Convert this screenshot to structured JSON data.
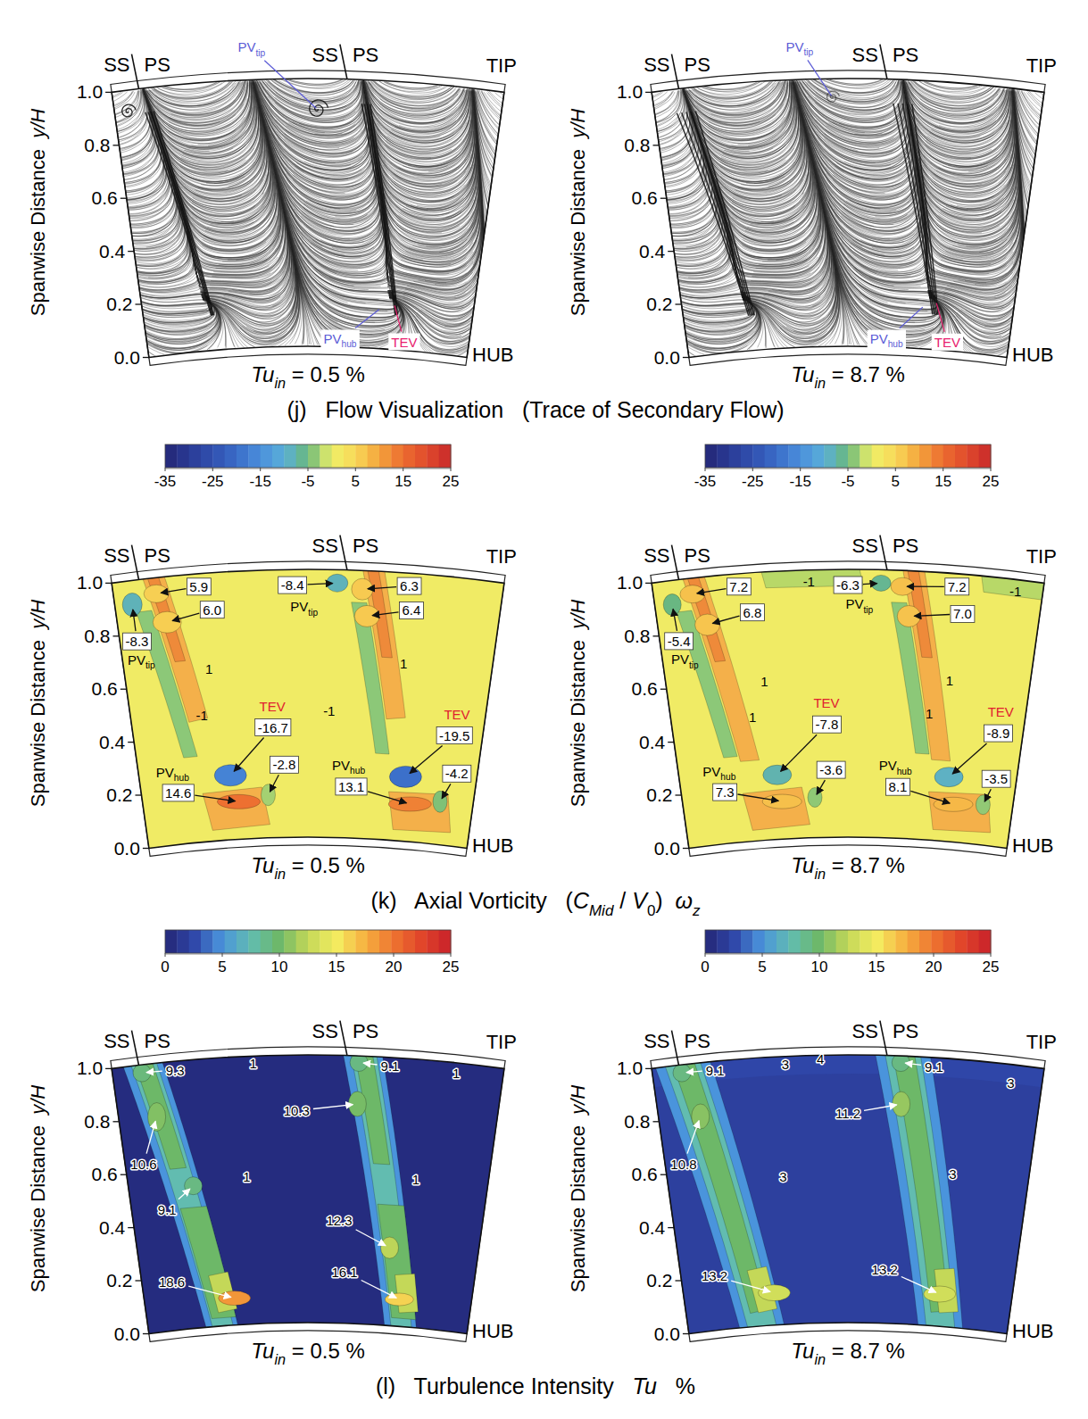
{
  "captions": [
    {
      "parts": [
        {
          "text": "(j)   Flow Visualization   (Trace of Secondary Flow)"
        }
      ]
    },
    {
      "parts": [
        {
          "text": "(k)   Axial Vorticity   ("
        },
        {
          "text": "C",
          "style": "italic"
        },
        {
          "text": "Mid",
          "style": "italic-sub"
        },
        {
          "text": " / "
        },
        {
          "text": "V",
          "style": "italic"
        },
        {
          "text": "0",
          "style": "sub"
        },
        {
          "text": ")  "
        },
        {
          "text": "ω",
          "style": "italic"
        },
        {
          "text": "z",
          "style": "italic-sub"
        }
      ]
    },
    {
      "parts": [
        {
          "text": "(l)   Turbulence Intensity   "
        },
        {
          "text": "Tu",
          "style": "italic"
        },
        {
          "text": "   %"
        }
      ]
    }
  ],
  "chart_data": [
    {
      "type": "streamlines",
      "subtitle": [
        {
          "text": "Tu",
          "style": "italic"
        },
        {
          "text": "in",
          "style": "italic-sub"
        },
        {
          "text": " = 0.5 %"
        }
      ],
      "ylabel": [
        {
          "text": "Spanwise Distance  "
        },
        {
          "text": "y/H",
          "style": "italic"
        }
      ],
      "ylim": [
        0,
        1
      ],
      "yticks": [
        {
          "value": 0,
          "label": "0.0"
        },
        0.2,
        0.4,
        0.6,
        0.8,
        {
          "value": 1,
          "label": "1.0"
        }
      ],
      "tick_labels": "y",
      "blade_labels": [
        {
          "suction": "SS",
          "pressure": "PS"
        },
        {
          "suction": "SS",
          "pressure": "PS"
        }
      ],
      "tip_label": "TIP",
      "hub_label": "HUB",
      "annotations": [
        {
          "parts": [
            {
              "text": "PV"
            },
            {
              "text": "tip",
              "style": "sub"
            }
          ],
          "color": "#5b5bd6"
        },
        {
          "parts": [
            {
              "text": "PV"
            },
            {
              "text": "hub",
              "style": "sub"
            }
          ],
          "color": "#5b5bd6"
        },
        {
          "parts": [
            {
              "text": "TEV"
            }
          ],
          "color": "#e8206e"
        }
      ]
    },
    {
      "type": "streamlines",
      "subtitle": [
        {
          "text": "Tu",
          "style": "italic"
        },
        {
          "text": "in",
          "style": "italic-sub"
        },
        {
          "text": " = 8.7 %"
        }
      ],
      "ylabel": [
        {
          "text": "Spanwise Distance  "
        },
        {
          "text": "y/H",
          "style": "italic"
        }
      ],
      "ylim": [
        0,
        1
      ],
      "yticks": [
        {
          "value": 0,
          "label": "0.0"
        },
        0.2,
        0.4,
        0.6,
        0.8,
        {
          "value": 1,
          "label": "1.0"
        }
      ],
      "tick_labels": "y",
      "blade_labels": [
        {
          "suction": "SS",
          "pressure": "PS"
        },
        {
          "suction": "SS",
          "pressure": "PS"
        }
      ],
      "tip_label": "TIP",
      "hub_label": "HUB",
      "annotations": [
        {
          "parts": [
            {
              "text": "PV"
            },
            {
              "text": "tip",
              "style": "sub"
            }
          ],
          "color": "#5b5bd6"
        },
        {
          "parts": [
            {
              "text": "PV"
            },
            {
              "text": "hub",
              "style": "sub"
            }
          ],
          "color": "#5b5bd6"
        },
        {
          "parts": [
            {
              "text": "TEV"
            }
          ],
          "color": "#e8206e"
        }
      ]
    },
    {
      "type": "contour",
      "subtitle": [
        {
          "text": "Tu",
          "style": "italic"
        },
        {
          "text": "in",
          "style": "italic-sub"
        },
        {
          "text": " = 0.5 %"
        }
      ],
      "ylabel": [
        {
          "text": "Spanwise Distance  "
        },
        {
          "text": "y/H",
          "style": "italic"
        }
      ],
      "ylim": [
        0,
        1
      ],
      "yticks": [
        {
          "value": 0,
          "label": "0.0"
        },
        0.2,
        0.4,
        0.6,
        0.8,
        {
          "value": 1,
          "label": "1.0"
        }
      ],
      "tick_labels": "y",
      "blade_labels": [
        {
          "suction": "SS",
          "pressure": "PS"
        },
        {
          "suction": "SS",
          "pressure": "PS"
        }
      ],
      "tip_label": "TIP",
      "hub_label": "HUB",
      "background_value": 1,
      "colorbar": {
        "range": [
          -35,
          25
        ],
        "ticks": [
          -35,
          -25,
          -15,
          -5,
          5,
          15,
          25
        ],
        "colors": [
          "#232675",
          "#2a3a95",
          "#3050b0",
          "#3a6cc8",
          "#4b8fdc",
          "#5aafd8",
          "#6ab87a",
          "#eef068",
          "#f8d858",
          "#f4a43c",
          "#ec6c30",
          "#e04a2c",
          "#c8282a"
        ]
      },
      "annotations": [
        {
          "text": "5.9",
          "value": 5.9
        },
        {
          "text": "6.0",
          "value": 6
        },
        {
          "text": "-8.3",
          "value": -8.3
        },
        {
          "parts": [
            {
              "text": "PV"
            },
            {
              "text": "tip",
              "style": "sub"
            }
          ]
        },
        {
          "text": "1",
          "value": 1
        },
        {
          "text": "-1",
          "value": -1
        },
        {
          "parts": [
            {
              "text": "TEV"
            }
          ],
          "color": "#e02030"
        },
        {
          "text": "-16.7",
          "value": -16.7
        },
        {
          "parts": [
            {
              "text": "PV"
            },
            {
              "text": "hub",
              "style": "sub"
            }
          ]
        },
        {
          "text": "14.6",
          "value": 14.6
        },
        {
          "text": "-2.8",
          "value": -2.8
        },
        {
          "text": "-8.4",
          "value": -8.4
        },
        {
          "parts": [
            {
              "text": "PV"
            },
            {
              "text": "tip",
              "style": "sub"
            }
          ]
        },
        {
          "text": "6.3",
          "value": 6.3
        },
        {
          "text": "6.4",
          "value": 6.4
        },
        {
          "text": "1",
          "value": 1
        },
        {
          "text": "-1",
          "value": -1
        },
        {
          "parts": [
            {
              "text": "TEV"
            }
          ],
          "color": "#e02030"
        },
        {
          "text": "-19.5",
          "value": -19.5
        },
        {
          "parts": [
            {
              "text": "PV"
            },
            {
              "text": "hub",
              "style": "sub"
            }
          ]
        },
        {
          "text": "13.1",
          "value": 13.1
        },
        {
          "text": "-4.2",
          "value": -4.2
        }
      ]
    },
    {
      "type": "contour",
      "subtitle": [
        {
          "text": "Tu",
          "style": "italic"
        },
        {
          "text": "in",
          "style": "italic-sub"
        },
        {
          "text": " = 8.7 %"
        }
      ],
      "ylabel": [
        {
          "text": "Spanwise Distance  "
        },
        {
          "text": "y/H",
          "style": "italic"
        }
      ],
      "ylim": [
        0,
        1
      ],
      "yticks": [
        {
          "value": 0,
          "label": "0.0"
        },
        0.2,
        0.4,
        0.6,
        0.8,
        {
          "value": 1,
          "label": "1.0"
        }
      ],
      "tick_labels": "y",
      "blade_labels": [
        {
          "suction": "SS",
          "pressure": "PS"
        },
        {
          "suction": "SS",
          "pressure": "PS"
        }
      ],
      "tip_label": "TIP",
      "hub_label": "HUB",
      "background_value": 1,
      "colorbar": {
        "range": [
          -35,
          25
        ],
        "ticks": [
          -35,
          -25,
          -15,
          -5,
          5,
          15,
          25
        ],
        "colors": [
          "#232675",
          "#2a3a95",
          "#3050b0",
          "#3a6cc8",
          "#4b8fdc",
          "#5aafd8",
          "#6ab87a",
          "#eef068",
          "#f8d858",
          "#f4a43c",
          "#ec6c30",
          "#e04a2c",
          "#c8282a"
        ]
      },
      "annotations": [
        {
          "text": "7.2",
          "value": 7.2
        },
        {
          "text": "6.8",
          "value": 6.8
        },
        {
          "text": "-5.4",
          "value": -5.4
        },
        {
          "parts": [
            {
              "text": "PV"
            },
            {
              "text": "tip",
              "style": "sub"
            }
          ]
        },
        {
          "text": "-1",
          "value": -1
        },
        {
          "text": "1",
          "value": 1
        },
        {
          "text": "1",
          "value": 1
        },
        {
          "parts": [
            {
              "text": "TEV"
            }
          ],
          "color": "#e02030"
        },
        {
          "text": "-7.8",
          "value": -7.8
        },
        {
          "parts": [
            {
              "text": "PV"
            },
            {
              "text": "hub",
              "style": "sub"
            }
          ]
        },
        {
          "text": "7.3",
          "value": 7.3
        },
        {
          "text": "-3.6",
          "value": -3.6
        },
        {
          "text": "-6.3",
          "value": -6.3
        },
        {
          "parts": [
            {
              "text": "PV"
            },
            {
              "text": "tip",
              "style": "sub"
            }
          ]
        },
        {
          "text": "7.2",
          "value": 7.2
        },
        {
          "text": "7.0",
          "value": 7
        },
        {
          "text": "-1",
          "value": -1
        },
        {
          "text": "1",
          "value": 1
        },
        {
          "text": "1",
          "value": 1
        },
        {
          "parts": [
            {
              "text": "TEV"
            }
          ],
          "color": "#e02030"
        },
        {
          "text": "-8.9",
          "value": -8.9
        },
        {
          "parts": [
            {
              "text": "PV"
            },
            {
              "text": "hub",
              "style": "sub"
            }
          ]
        },
        {
          "text": "8.1",
          "value": 8.1
        },
        {
          "text": "-3.5",
          "value": -3.5
        }
      ]
    },
    {
      "type": "contour",
      "subtitle": [
        {
          "text": "Tu",
          "style": "italic"
        },
        {
          "text": "in",
          "style": "italic-sub"
        },
        {
          "text": " = 0.5 %"
        }
      ],
      "ylabel": [
        {
          "text": "Spanwise Distance  "
        },
        {
          "text": "y/H",
          "style": "italic"
        }
      ],
      "ylim": [
        0,
        1
      ],
      "yticks": [
        {
          "value": 0,
          "label": "0.0"
        },
        0.2,
        0.4,
        0.6,
        0.8,
        {
          "value": 1,
          "label": "1.0"
        }
      ],
      "tick_labels": "y",
      "blade_labels": [
        {
          "suction": "SS",
          "pressure": "PS"
        },
        {
          "suction": "SS",
          "pressure": "PS"
        }
      ],
      "tip_label": "TIP",
      "hub_label": "HUB",
      "background_value": 0.5,
      "colorbar": {
        "range": [
          0,
          25
        ],
        "ticks": [
          0,
          5,
          10,
          15,
          20,
          25
        ],
        "colors": [
          "#232675",
          "#2f46a8",
          "#4a94dc",
          "#62bcb0",
          "#6db868",
          "#c4d858",
          "#f4ec60",
          "#f6b040",
          "#ee7430",
          "#e0442a",
          "#c8202a"
        ]
      },
      "annotations": [
        {
          "text": "9.3",
          "value": 9.3
        },
        {
          "text": "1",
          "value": 1
        },
        {
          "text": "10.6",
          "value": 10.6
        },
        {
          "text": "9.1",
          "value": 9.1
        },
        {
          "text": "1",
          "value": 1
        },
        {
          "text": "18.6",
          "value": 18.6
        },
        {
          "text": "9.1",
          "value": 9.1
        },
        {
          "text": "1",
          "value": 1
        },
        {
          "text": "10.3",
          "value": 10.3
        },
        {
          "text": "1",
          "value": 1
        },
        {
          "text": "12.3",
          "value": 12.3
        },
        {
          "text": "16.1",
          "value": 16.1
        }
      ]
    },
    {
      "type": "contour",
      "subtitle": [
        {
          "text": "Tu",
          "style": "italic"
        },
        {
          "text": "in",
          "style": "italic-sub"
        },
        {
          "text": " = 8.7 %"
        }
      ],
      "ylabel": [
        {
          "text": "Spanwise Distance  "
        },
        {
          "text": "y/H",
          "style": "italic"
        }
      ],
      "ylim": [
        0,
        1
      ],
      "yticks": [
        {
          "value": 0,
          "label": "0.0"
        },
        0.2,
        0.4,
        0.6,
        0.8,
        {
          "value": 1,
          "label": "1.0"
        }
      ],
      "tick_labels": "y",
      "blade_labels": [
        {
          "suction": "SS",
          "pressure": "PS"
        },
        {
          "suction": "SS",
          "pressure": "PS"
        }
      ],
      "tip_label": "TIP",
      "hub_label": "HUB",
      "background_value": 2,
      "colorbar": {
        "range": [
          0,
          25
        ],
        "ticks": [
          0,
          5,
          10,
          15,
          20,
          25
        ],
        "colors": [
          "#232675",
          "#2f46a8",
          "#4a94dc",
          "#62bcb0",
          "#6db868",
          "#c4d858",
          "#f4ec60",
          "#f6b040",
          "#ee7430",
          "#e0442a",
          "#c8202a"
        ]
      },
      "annotations": [
        {
          "text": "9.1",
          "value": 9.1
        },
        {
          "text": "3",
          "value": 3
        },
        {
          "text": "4",
          "value": 4
        },
        {
          "text": "10.8",
          "value": 10.8
        },
        {
          "text": "3",
          "value": 3
        },
        {
          "text": "13.2",
          "value": 13.2
        },
        {
          "text": "9.1",
          "value": 9.1
        },
        {
          "text": "3",
          "value": 3
        },
        {
          "text": "11.2",
          "value": 11.2
        },
        {
          "text": "3",
          "value": 3
        },
        {
          "text": "13.2",
          "value": 13.2
        }
      ]
    }
  ]
}
